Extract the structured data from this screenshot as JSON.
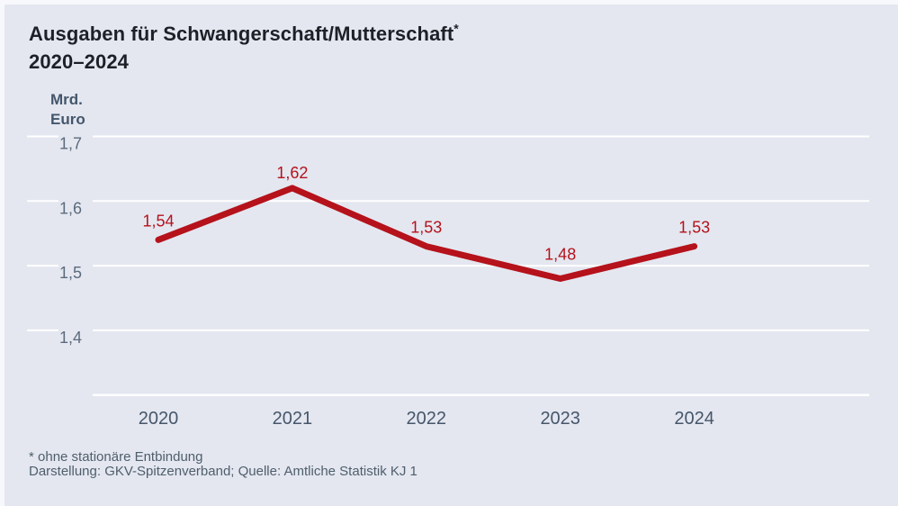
{
  "header": {
    "title_line1": "Ausgaben für Schwangerschaft/Mutterschaft",
    "title_note_marker": "*",
    "title_line2": "2020–2024"
  },
  "chart_data": {
    "type": "line",
    "title": "Ausgaben für Schwangerschaft/Mutterschaft 2020–2024",
    "unit_label_line1": "Mrd.",
    "unit_label_line2": "Euro",
    "x": [
      "2020",
      "2021",
      "2022",
      "2023",
      "2024"
    ],
    "values": [
      1.54,
      1.62,
      1.53,
      1.48,
      1.53
    ],
    "value_labels": [
      "1,54",
      "1,62",
      "1,53",
      "1,48",
      "1,53"
    ],
    "yticks": [
      {
        "value": 1.7,
        "label": "1,7"
      },
      {
        "value": 1.6,
        "label": "1,6"
      },
      {
        "value": 1.5,
        "label": "1,5"
      },
      {
        "value": 1.4,
        "label": "1,4"
      }
    ],
    "ylim": [
      1.3,
      1.7
    ],
    "grid": true,
    "legend": "none",
    "line_color": "#b5121b",
    "grid_color": "#ffffff",
    "background_color": "#e4e7f0",
    "axis_text_color": "#5c6b7c",
    "year_text_color": "#46566a"
  },
  "footer": {
    "note": "* ohne stationäre Entbindung",
    "source": "Darstellung: GKV-Spitzenverband; Quelle: Amtliche Statistik KJ 1"
  }
}
